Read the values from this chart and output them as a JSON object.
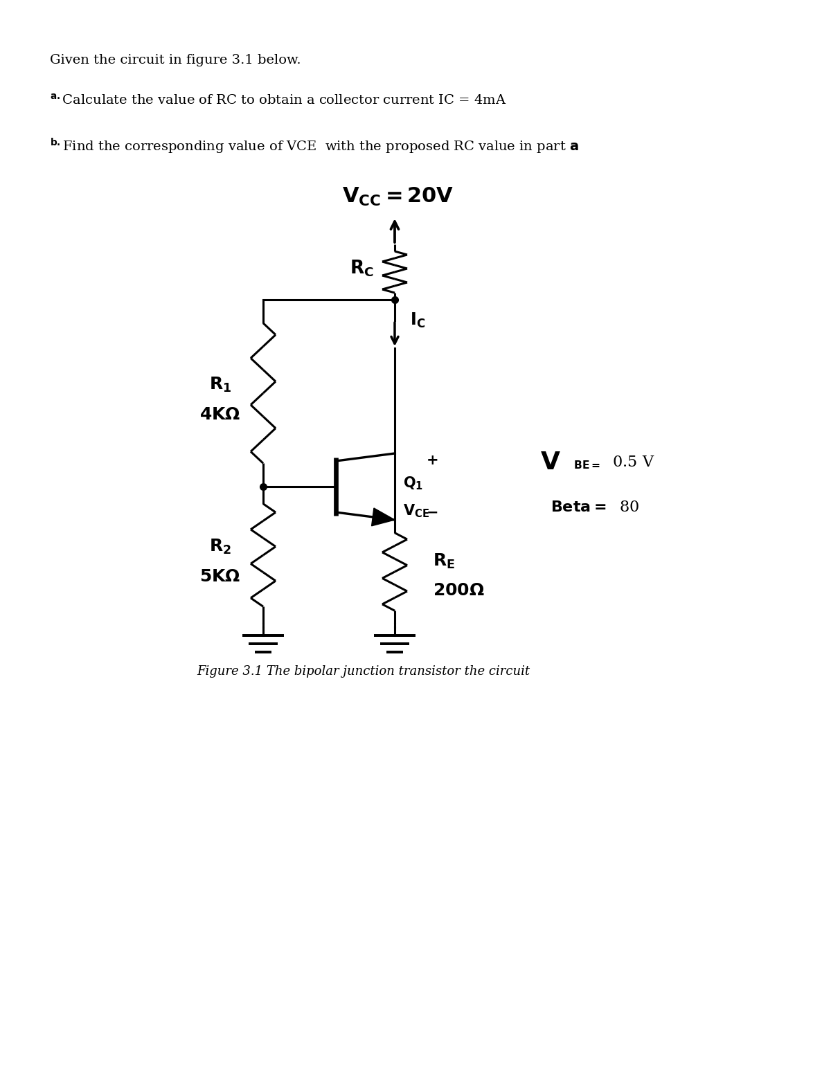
{
  "fig_width": 12.0,
  "fig_height": 15.53,
  "bg_color": "#ffffff",
  "text_color": "#000000",
  "line_color": "#000000",
  "line_width": 2.2,
  "intro_line1": "Given the circuit in figure 3.1 below.",
  "intro_line2": "Calculate the value of RC to obtain a collector current IC = 4mA",
  "intro_line3": "Find the corresponding value of VCE  with the proposed RC value in part ",
  "figure_caption": "Figure 3.1 The bipolar junction transistor the circuit",
  "r1_val": "4KΩ",
  "r2_val": "5KΩ",
  "re_val": "200Ω",
  "vbe_val": "0.5 V",
  "beta_val": "80",
  "vcc_val": "20V"
}
